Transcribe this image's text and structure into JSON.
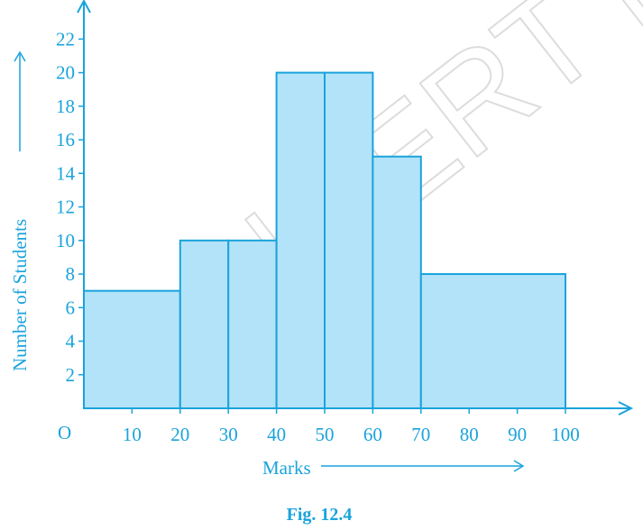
{
  "chart_data": {
    "type": "bar",
    "title": "",
    "xlabel": "Marks",
    "ylabel": "Number of Students",
    "origin_label": "O",
    "x_ticks": [
      10,
      20,
      30,
      40,
      50,
      60,
      70,
      80,
      90,
      100
    ],
    "y_ticks": [
      2,
      4,
      6,
      8,
      10,
      12,
      14,
      16,
      18,
      20,
      22
    ],
    "xlim": [
      0,
      100
    ],
    "ylim": [
      0,
      23
    ],
    "bins": [
      {
        "from": 0,
        "to": 20,
        "value": 7
      },
      {
        "from": 20,
        "to": 30,
        "value": 10
      },
      {
        "from": 30,
        "to": 40,
        "value": 10
      },
      {
        "from": 40,
        "to": 50,
        "value": 20
      },
      {
        "from": 50,
        "to": 60,
        "value": 20
      },
      {
        "from": 60,
        "to": 70,
        "value": 15
      },
      {
        "from": 70,
        "to": 100,
        "value": 8
      }
    ],
    "grid": false
  },
  "caption": "Fig. 12.4",
  "watermark": "© NCERT not to be republished",
  "colors": {
    "axis": "#1aa3dc",
    "bar_fill": "#b3e3f8",
    "bar_stroke": "#1aa3dc"
  }
}
